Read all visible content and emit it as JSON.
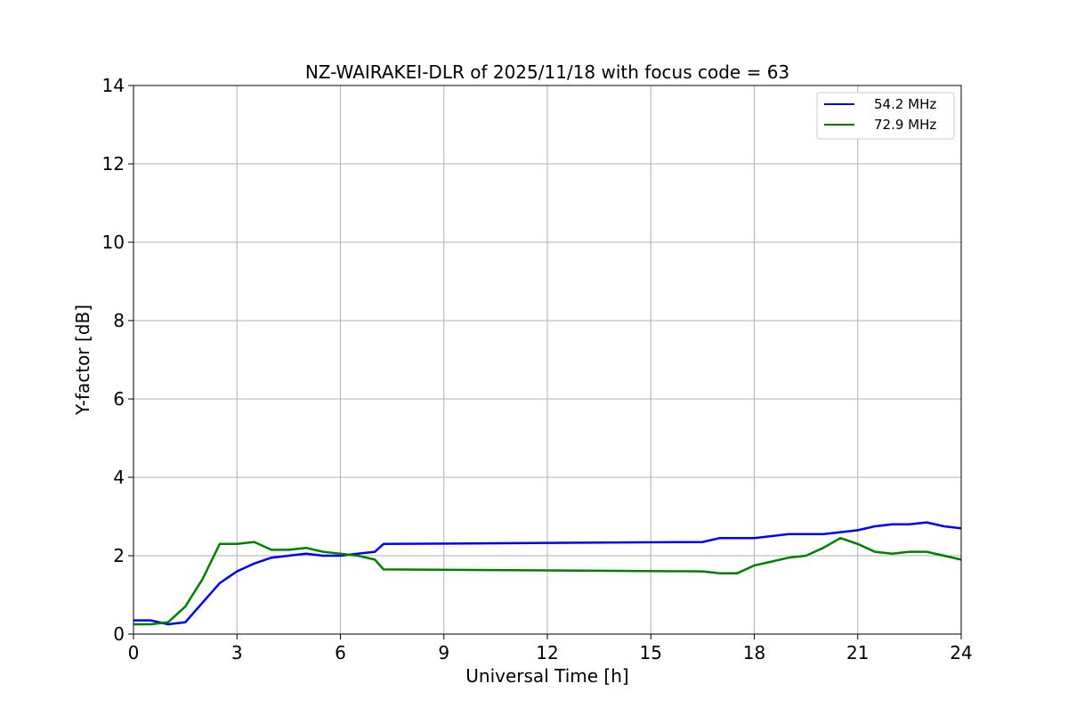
{
  "chart_data": {
    "type": "line",
    "title": "NZ-WAIRAKEI-DLR of 2025/11/18 with focus code = 63",
    "xlabel": "Universal Time [h]",
    "ylabel": "Y-factor [dB]",
    "xlim": [
      0,
      24
    ],
    "ylim": [
      0,
      14
    ],
    "xticks": [
      0,
      3,
      6,
      9,
      12,
      15,
      18,
      21,
      24
    ],
    "yticks": [
      0,
      2,
      4,
      6,
      8,
      10,
      12,
      14
    ],
    "xtick_labels": [
      "0",
      "3",
      "6",
      "9",
      "12",
      "15",
      "18",
      "21",
      "24"
    ],
    "ytick_labels": [
      "0",
      "2",
      "4",
      "6",
      "8",
      "10",
      "12",
      "14"
    ],
    "grid": true,
    "legend_position": "top-right",
    "series": [
      {
        "name": "54.2 MHz",
        "color": "#0000ff",
        "x": [
          0,
          0.5,
          1.0,
          1.5,
          2.0,
          2.5,
          3.0,
          3.5,
          4.0,
          4.5,
          5.0,
          5.5,
          6.0,
          6.5,
          7.0,
          7.25,
          16.5,
          17.0,
          17.5,
          18.0,
          18.5,
          19.0,
          19.5,
          20.0,
          20.5,
          21.0,
          21.5,
          22.0,
          22.5,
          23.0,
          23.5,
          24.0
        ],
        "y": [
          0.35,
          0.35,
          0.25,
          0.3,
          0.8,
          1.3,
          1.6,
          1.8,
          1.95,
          2.0,
          2.05,
          2.0,
          2.0,
          2.05,
          2.1,
          2.3,
          2.35,
          2.45,
          2.45,
          2.45,
          2.5,
          2.55,
          2.55,
          2.55,
          2.6,
          2.65,
          2.75,
          2.8,
          2.8,
          2.85,
          2.75,
          2.7
        ]
      },
      {
        "name": "72.9 MHz",
        "color": "#008000",
        "x": [
          0,
          0.5,
          1.0,
          1.5,
          2.0,
          2.5,
          3.0,
          3.5,
          4.0,
          4.5,
          5.0,
          5.5,
          6.0,
          6.5,
          7.0,
          7.25,
          16.5,
          17.0,
          17.5,
          18.0,
          18.5,
          19.0,
          19.5,
          20.0,
          20.5,
          21.0,
          21.5,
          22.0,
          22.5,
          23.0,
          23.5,
          24.0
        ],
        "y": [
          0.25,
          0.25,
          0.3,
          0.7,
          1.4,
          2.3,
          2.3,
          2.35,
          2.15,
          2.15,
          2.2,
          2.1,
          2.05,
          2.0,
          1.9,
          1.65,
          1.6,
          1.55,
          1.55,
          1.75,
          1.85,
          1.95,
          2.0,
          2.2,
          2.45,
          2.3,
          2.1,
          2.05,
          2.1,
          2.1,
          2.0,
          1.9
        ]
      }
    ]
  }
}
